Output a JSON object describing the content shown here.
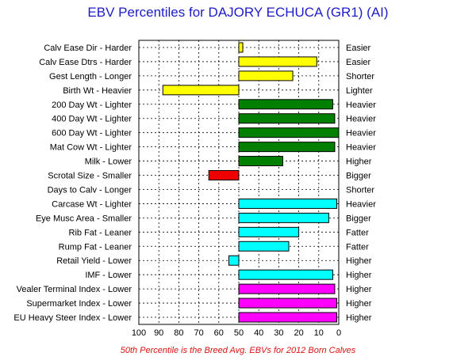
{
  "title": "EBV Percentiles for DAJORY ECHUCA (GR1) (AI)",
  "footnote": "50th Percentile is the Breed Avg. EBVs for 2012 Born Calves",
  "colors": {
    "title": "#1c1cc8",
    "footnote": "#dd1111",
    "yellow": "#ffff00",
    "green": "#007f00",
    "red": "#ee0000",
    "cyan": "#00ffff",
    "magenta": "#ff00ff"
  },
  "chart_data": {
    "type": "bar",
    "orientation": "horizontal",
    "baseline": 50,
    "xlim": [
      100,
      0
    ],
    "x_ticks": [
      "100",
      "90",
      "80",
      "70",
      "60",
      "50",
      "40",
      "30",
      "20",
      "10",
      "0"
    ],
    "grid": true,
    "traits": [
      {
        "left_label": "Calv Ease Dir - Harder",
        "right_label": "Easier",
        "value": 48,
        "color": "yellow"
      },
      {
        "left_label": "Calv Ease Dtrs - Harder",
        "right_label": "Easier",
        "value": 11,
        "color": "yellow"
      },
      {
        "left_label": "Gest Length - Longer",
        "right_label": "Shorter",
        "value": 23,
        "color": "yellow"
      },
      {
        "left_label": "Birth Wt - Heavier",
        "right_label": "Lighter",
        "value": 88,
        "color": "yellow"
      },
      {
        "left_label": "200 Day Wt - Lighter",
        "right_label": "Heavier",
        "value": 3,
        "color": "green"
      },
      {
        "left_label": "400 Day Wt - Lighter",
        "right_label": "Heavier",
        "value": 2,
        "color": "green"
      },
      {
        "left_label": "600 Day Wt - Lighter",
        "right_label": "Heavier",
        "value": 0,
        "color": "green"
      },
      {
        "left_label": "Mat Cow Wt - Lighter",
        "right_label": "Heavier",
        "value": 2,
        "color": "green"
      },
      {
        "left_label": "Milk - Lower",
        "right_label": "Higher",
        "value": 28,
        "color": "green"
      },
      {
        "left_label": "Scrotal Size - Smaller",
        "right_label": "Bigger",
        "value": 65,
        "color": "red"
      },
      {
        "left_label": "Days to Calv - Longer",
        "right_label": "Shorter",
        "value": null,
        "color": "none"
      },
      {
        "left_label": "Carcase Wt - Lighter",
        "right_label": "Heavier",
        "value": 1,
        "color": "cyan"
      },
      {
        "left_label": "Eye Musc Area - Smaller",
        "right_label": "Bigger",
        "value": 5,
        "color": "cyan"
      },
      {
        "left_label": "Rib Fat - Leaner",
        "right_label": "Fatter",
        "value": 20,
        "color": "cyan"
      },
      {
        "left_label": "Rump Fat - Leaner",
        "right_label": "Fatter",
        "value": 25,
        "color": "cyan"
      },
      {
        "left_label": "Retail Yield - Lower",
        "right_label": "Higher",
        "value": 55,
        "color": "cyan"
      },
      {
        "left_label": "IMF - Lower",
        "right_label": "Higher",
        "value": 3,
        "color": "cyan"
      },
      {
        "left_label": "Vealer Terminal Index - Lower",
        "right_label": "Higher",
        "value": 2,
        "color": "magenta"
      },
      {
        "left_label": "Supermarket Index - Lower",
        "right_label": "Higher",
        "value": 1,
        "color": "magenta"
      },
      {
        "left_label": "EU Heavy Steer Index - Lower",
        "right_label": "Higher",
        "value": 1,
        "color": "magenta"
      }
    ]
  }
}
